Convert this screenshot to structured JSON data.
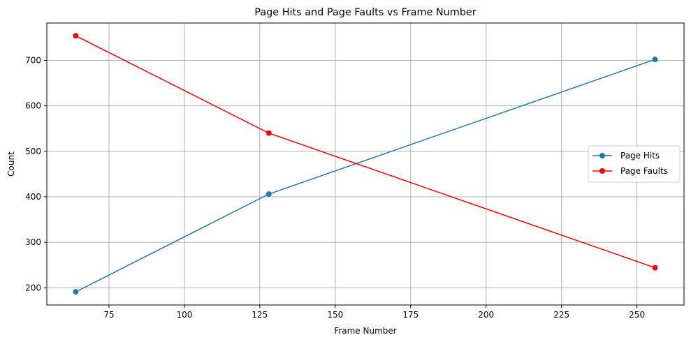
{
  "chart_data": {
    "type": "line",
    "title": "Page Hits and Page Faults vs Frame Number",
    "xlabel": "Frame Number",
    "ylabel": "Count",
    "x": [
      64,
      128,
      256
    ],
    "xlim": [
      54.4,
      265.6
    ],
    "ylim": [
      162.05,
      782.05
    ],
    "xticks": [
      75,
      100,
      125,
      150,
      175,
      200,
      225,
      250
    ],
    "yticks": [
      200,
      300,
      400,
      500,
      600,
      700
    ],
    "grid": true,
    "legend_position": "center-right",
    "series": [
      {
        "name": "Page Hits",
        "values": [
          191,
          406,
          702
        ],
        "color": "#1f77b4",
        "marker": "circle"
      },
      {
        "name": "Page Faults",
        "values": [
          754,
          540,
          244
        ],
        "color": "#ff0000",
        "marker": "circle"
      }
    ]
  }
}
